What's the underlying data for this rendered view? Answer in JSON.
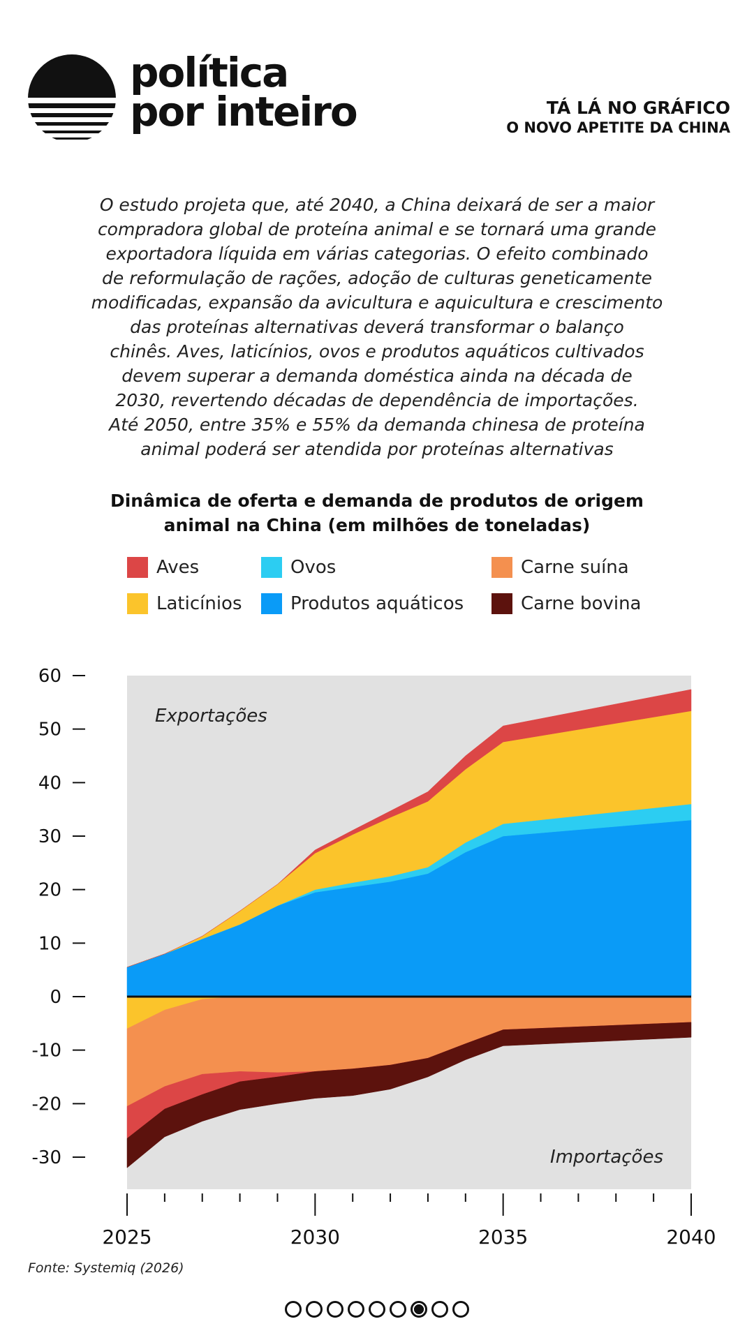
{
  "brand": {
    "line1": "política",
    "line2": "por inteiro"
  },
  "section": {
    "line1": "TÁ LÁ NO GRÁFICO",
    "line2": "O NOVO APETITE DA CHINA"
  },
  "intro_lines": [
    "O estudo projeta que, até 2040, a China deixará de ser a maior",
    "compradora global de proteína animal e se tornará uma grande",
    "exportadora líquida em várias categorias. O efeito combinado",
    "de reformulação de rações, adoção de culturas geneticamente",
    "modificadas, expansão da avicultura e aquicultura e crescimento",
    "das proteínas alternativas deverá transformar o balanço",
    "chinês. Aves, laticínios, ovos e produtos aquáticos cultivados",
    "devem superar a demanda doméstica ainda na década de",
    "2030, revertendo décadas de dependência de importações.",
    "Até 2050, entre 35% e 55% da demanda chinesa de proteína",
    "animal poderá ser atendida por proteínas alternativas"
  ],
  "source": "Fonte: Systemiq (2026)",
  "pagination": {
    "total": 9,
    "active": 6
  },
  "chart_data": {
    "type": "area",
    "title_lines": [
      "Dinâmica de oferta e demanda de produtos de origem",
      "animal na China (em milhões de toneladas)"
    ],
    "x": [
      2025,
      2026,
      2027,
      2028,
      2029,
      2030,
      2031,
      2032,
      2033,
      2034,
      2035,
      2040
    ],
    "xticks": [
      2025,
      2030,
      2035,
      2040
    ],
    "yticks": [
      60,
      50,
      40,
      30,
      20,
      10,
      0,
      -10,
      -20,
      -30
    ],
    "ylim": [
      -36,
      60
    ],
    "region_labels": {
      "top": "Exportações",
      "bottom": "Importações"
    },
    "export_series": [
      {
        "name": "Produtos aquáticos",
        "color": "#0a9bf7",
        "values": [
          5.5,
          8,
          10.8,
          13.5,
          17,
          19.5,
          20.5,
          21.5,
          23,
          27,
          30,
          33
        ]
      },
      {
        "name": "Ovos",
        "color": "#2ccdf2",
        "values": [
          0,
          0,
          0,
          0,
          0,
          0.5,
          0.8,
          1,
          1.2,
          1.8,
          2.3,
          3
        ]
      },
      {
        "name": "Laticínios",
        "color": "#fbc42b",
        "values": [
          0,
          0,
          0.5,
          2.5,
          4,
          6.8,
          9,
          11,
          12.3,
          13.7,
          15.3,
          17.4
        ]
      },
      {
        "name": "Aves",
        "color": "#dc4646",
        "values": [
          0,
          0,
          0,
          0,
          0,
          0.6,
          0.8,
          1.2,
          1.8,
          2.5,
          3,
          4
        ]
      }
    ],
    "import_series": [
      {
        "name": "Laticínios",
        "color": "#fbc42b",
        "values": [
          -6,
          -2.5,
          -0.5,
          0,
          0,
          0,
          0,
          0,
          0,
          0,
          0,
          0
        ]
      },
      {
        "name": "Carne suína",
        "color": "#f4904f",
        "values": [
          -14.5,
          -14.3,
          -14,
          -14,
          -14.2,
          -14,
          -13.5,
          -12.8,
          -11.5,
          -8.8,
          -6.2,
          -4.8
        ]
      },
      {
        "name": "Aves",
        "color": "#dc4646",
        "values": [
          -6,
          -4.2,
          -3.8,
          -1.9,
          -0.8,
          0,
          0,
          0,
          0,
          0,
          0,
          0
        ]
      },
      {
        "name": "Carne bovina",
        "color": "#5c120d",
        "values": [
          -5.5,
          -5.2,
          -5,
          -5.2,
          -5,
          -5,
          -5,
          -4.5,
          -3.5,
          -3,
          -3,
          -2.8
        ]
      }
    ],
    "legend": [
      {
        "label": "Aves",
        "color": "#dc4646"
      },
      {
        "label": "Ovos",
        "color": "#2ccdf2"
      },
      {
        "label": "Carne suína",
        "color": "#f4904f"
      },
      {
        "label": "Laticínios",
        "color": "#fbc42b"
      },
      {
        "label": "Produtos aquáticos",
        "color": "#0a9bf7"
      },
      {
        "label": "Carne bovina",
        "color": "#5c120d"
      }
    ],
    "background": "#e1e1e1"
  }
}
